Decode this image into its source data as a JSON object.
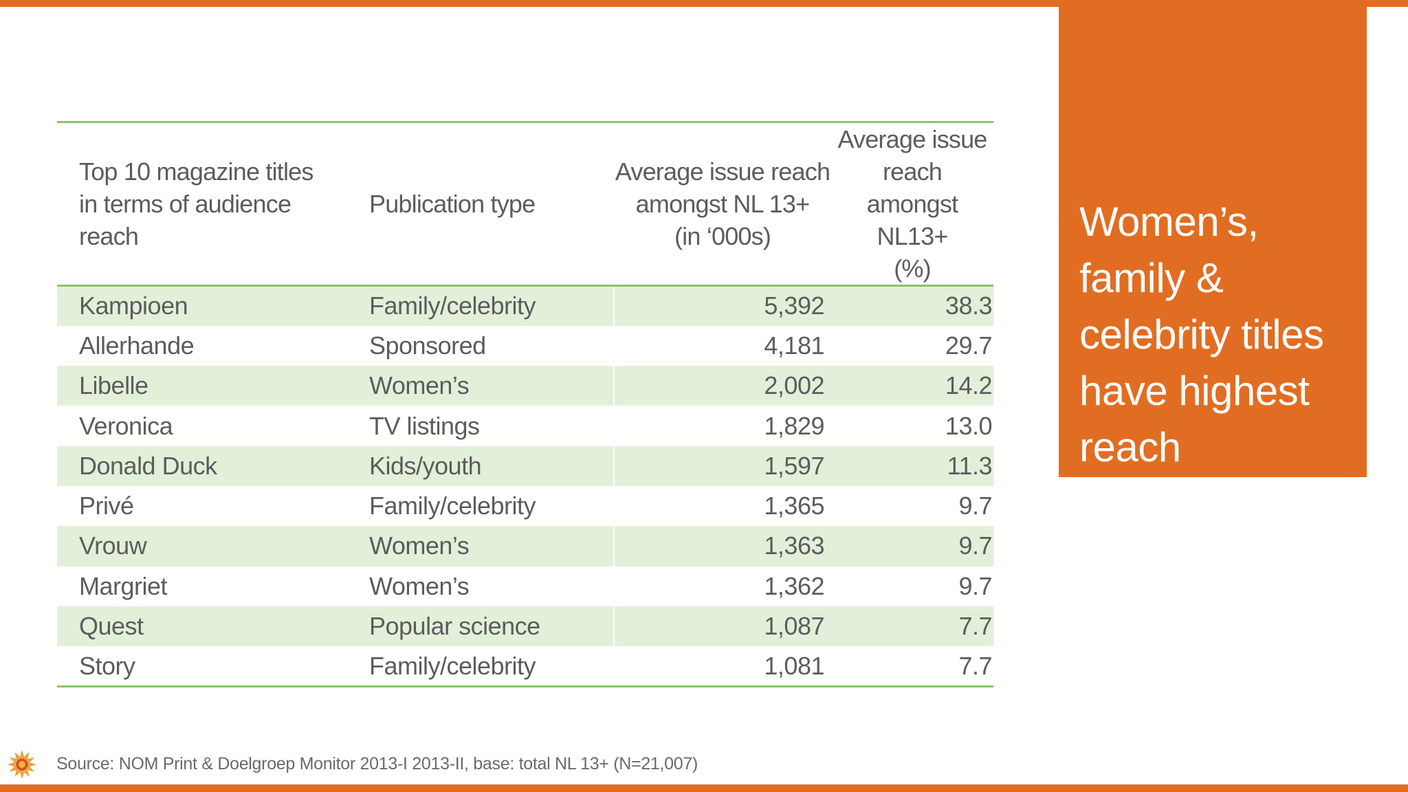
{
  "table": {
    "headers": {
      "title_line1": "Top 10 magazine titles",
      "title_line2": "in terms of audience reach",
      "type": "Publication type",
      "reach_line1": "Average issue reach",
      "reach_line2": "amongst NL 13+",
      "reach_line3": "(in ‘000s)",
      "pct_line1": "Average issue reach",
      "pct_line2": "amongst NL13+",
      "pct_line3": "(%)"
    },
    "rows": [
      {
        "title": "Kampioen",
        "type": "Family/celebrity",
        "reach": "5,392",
        "pct": "38.3"
      },
      {
        "title": "Allerhande",
        "type": "Sponsored",
        "reach": "4,181",
        "pct": "29.7"
      },
      {
        "title": "Libelle",
        "type": "Women’s",
        "reach": "2,002",
        "pct": "14.2"
      },
      {
        "title": "Veronica",
        "type": "TV listings",
        "reach": "1,829",
        "pct": "13.0"
      },
      {
        "title": "Donald Duck",
        "type": "Kids/youth",
        "reach": "1,597",
        "pct": "11.3"
      },
      {
        "title": "Privé",
        "type": "Family/celebrity",
        "reach": "1,365",
        "pct": "9.7"
      },
      {
        "title": "Vrouw",
        "type": "Women’s",
        "reach": "1,363",
        "pct": "9.7"
      },
      {
        "title": "Margriet",
        "type": "Women’s",
        "reach": "1,362",
        "pct": "9.7"
      },
      {
        "title": "Quest",
        "type": "Popular science",
        "reach": "1,087",
        "pct": "7.7"
      },
      {
        "title": "Story",
        "type": "Family/celebrity",
        "reach": "1,081",
        "pct": "7.7"
      }
    ]
  },
  "callout": {
    "lines": [
      "Women’s,",
      "family &",
      "celebrity titles",
      "have highest",
      "reach"
    ]
  },
  "source": "Source: NOM Print & Doelgroep Monitor 2013-I 2013-II, base: total NL 13+ (N=21,007)",
  "colors": {
    "accent": "#e16d22",
    "table_rule": "#8dc26b",
    "row_stripe": "#e2f0da",
    "text": "#5c5c5c"
  },
  "icons": {
    "logo": "sun-logo-icon"
  }
}
